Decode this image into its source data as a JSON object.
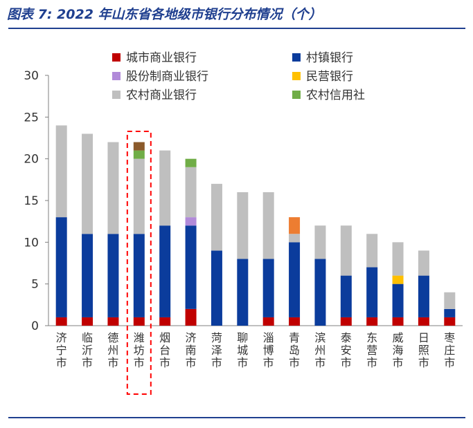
{
  "title": "图表 7:  2022 年山东省各地级市银行分布情况（个）",
  "chart_data": {
    "type": "bar",
    "stacked": true,
    "categories": [
      "济宁市",
      "临沂市",
      "德州市",
      "潍坊市",
      "烟台市",
      "济南市",
      "菏泽市",
      "聊城市",
      "淄博市",
      "青岛市",
      "滨州市",
      "泰安市",
      "东营市",
      "威海市",
      "日照市",
      "枣庄市"
    ],
    "ylim": [
      0,
      30
    ],
    "yticks": [
      0,
      5,
      10,
      15,
      20,
      25,
      30
    ],
    "highlight_category": "潍坊市",
    "legend_position": "top",
    "series": [
      {
        "name": "城市商业银行",
        "color": "#c00000",
        "values": [
          1,
          1,
          1,
          1,
          1,
          2,
          0,
          0,
          1,
          1,
          0,
          1,
          1,
          1,
          1,
          1
        ]
      },
      {
        "name": "村镇银行",
        "color": "#0b3c9c",
        "values": [
          12,
          10,
          10,
          10,
          11,
          10,
          9,
          8,
          7,
          9,
          8,
          5,
          6,
          4,
          5,
          1
        ]
      },
      {
        "name": "股份制商业银行",
        "color": "#b18ad9",
        "values": [
          0,
          0,
          0,
          0,
          0,
          1,
          0,
          0,
          0,
          0,
          0,
          0,
          0,
          0,
          0,
          0
        ]
      },
      {
        "name": "民营银行",
        "color": "#ffc000",
        "values": [
          0,
          0,
          0,
          0,
          0,
          0,
          0,
          0,
          0,
          0,
          0,
          0,
          0,
          1,
          0,
          0
        ]
      },
      {
        "name": "农村商业银行",
        "color": "#bfbfbf",
        "values": [
          11,
          12,
          11,
          9,
          9,
          6,
          8,
          8,
          8,
          1,
          4,
          6,
          4,
          4,
          3,
          2
        ]
      },
      {
        "name": "农村信用社",
        "color": "#70ad47",
        "values": [
          0,
          0,
          0,
          1,
          0,
          1,
          0,
          0,
          0,
          0,
          0,
          0,
          0,
          0,
          0,
          0
        ]
      },
      {
        "name": "",
        "color": "#ed7d31",
        "values": [
          0,
          0,
          0,
          0,
          0,
          0,
          0,
          0,
          0,
          2,
          0,
          0,
          0,
          0,
          0,
          0
        ]
      },
      {
        "name": "",
        "color": "#8b5a2b",
        "values": [
          0,
          0,
          0,
          1,
          0,
          0,
          0,
          0,
          0,
          0,
          0,
          0,
          0,
          0,
          0,
          0
        ]
      }
    ]
  }
}
